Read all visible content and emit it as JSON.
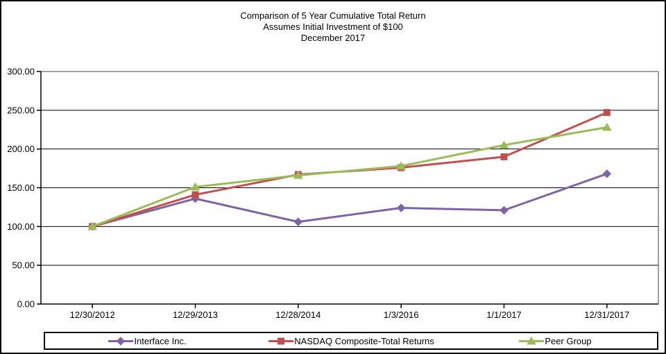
{
  "title": {
    "line1": "Comparison of 5 Year Cumulative Total Return",
    "line2": "Assumes Initial Investment of $100",
    "line3": "December 2017"
  },
  "chart_data": {
    "type": "line",
    "title": "Comparison of 5 Year Cumulative Total Return",
    "subtitle": "Assumes Initial Investment of $100",
    "period_label": "December 2017",
    "categories": [
      "12/30/2012",
      "12/29/2013",
      "12/28/2014",
      "1/3/2016",
      "1/1/2017",
      "12/31/2017"
    ],
    "series": [
      {
        "name": "Interface Inc.",
        "marker": "diamond",
        "color": "#7E63A2",
        "values": [
          100,
          136,
          106,
          124,
          121,
          168
        ]
      },
      {
        "name": "NASDAQ Composite-Total Returns",
        "marker": "square",
        "color": "#C0504D",
        "values": [
          100,
          141,
          167,
          176,
          190,
          247
        ]
      },
      {
        "name": "Peer Group",
        "marker": "triangle",
        "color": "#9BBB59",
        "values": [
          100,
          151,
          166,
          178,
          205,
          228
        ]
      }
    ],
    "xlabel": "",
    "ylabel": "",
    "ylim": [
      0,
      300
    ],
    "ytick_values": [
      0,
      50,
      100,
      150,
      200,
      250,
      300
    ],
    "ytick_labels": [
      "0.00",
      "50.00",
      "100.00",
      "150.00",
      "200.00",
      "250.00",
      "300.00"
    ],
    "grid": true,
    "legend_position": "bottom",
    "colors": {
      "text": "#000000",
      "gridline": "#000000",
      "axis": "#000000",
      "plot_frame_gray": "#808080",
      "background": "#FFFFFF"
    }
  }
}
